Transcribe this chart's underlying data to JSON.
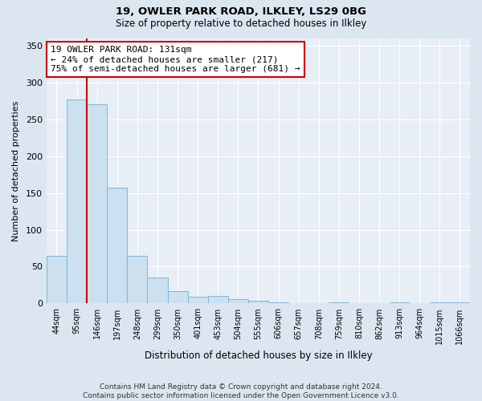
{
  "title1": "19, OWLER PARK ROAD, ILKLEY, LS29 0BG",
  "title2": "Size of property relative to detached houses in Ilkley",
  "xlabel": "Distribution of detached houses by size in Ilkley",
  "ylabel": "Number of detached properties",
  "footnote": "Contains HM Land Registry data © Crown copyright and database right 2024.\nContains public sector information licensed under the Open Government Licence v3.0.",
  "categories": [
    "44sqm",
    "95sqm",
    "146sqm",
    "197sqm",
    "248sqm",
    "299sqm",
    "350sqm",
    "401sqm",
    "453sqm",
    "504sqm",
    "555sqm",
    "606sqm",
    "657sqm",
    "708sqm",
    "759sqm",
    "810sqm",
    "862sqm",
    "913sqm",
    "964sqm",
    "1015sqm",
    "1066sqm"
  ],
  "values": [
    65,
    277,
    270,
    157,
    65,
    35,
    17,
    9,
    10,
    6,
    4,
    2,
    0,
    0,
    2,
    0,
    0,
    2,
    0,
    2,
    2
  ],
  "bar_color": "#cce0f0",
  "bar_edge_color": "#7ab8d8",
  "ref_line_color": "#cc0000",
  "annotation_text": "19 OWLER PARK ROAD: 131sqm\n← 24% of detached houses are smaller (217)\n75% of semi-detached houses are larger (681) →",
  "annotation_box_color": "#ffffff",
  "annotation_box_edge": "#cc0000",
  "ylim": [
    0,
    360
  ],
  "yticks": [
    0,
    50,
    100,
    150,
    200,
    250,
    300,
    350
  ],
  "background_color": "#dce6f0",
  "plot_background": "#e8eef6",
  "grid_color": "#ffffff"
}
